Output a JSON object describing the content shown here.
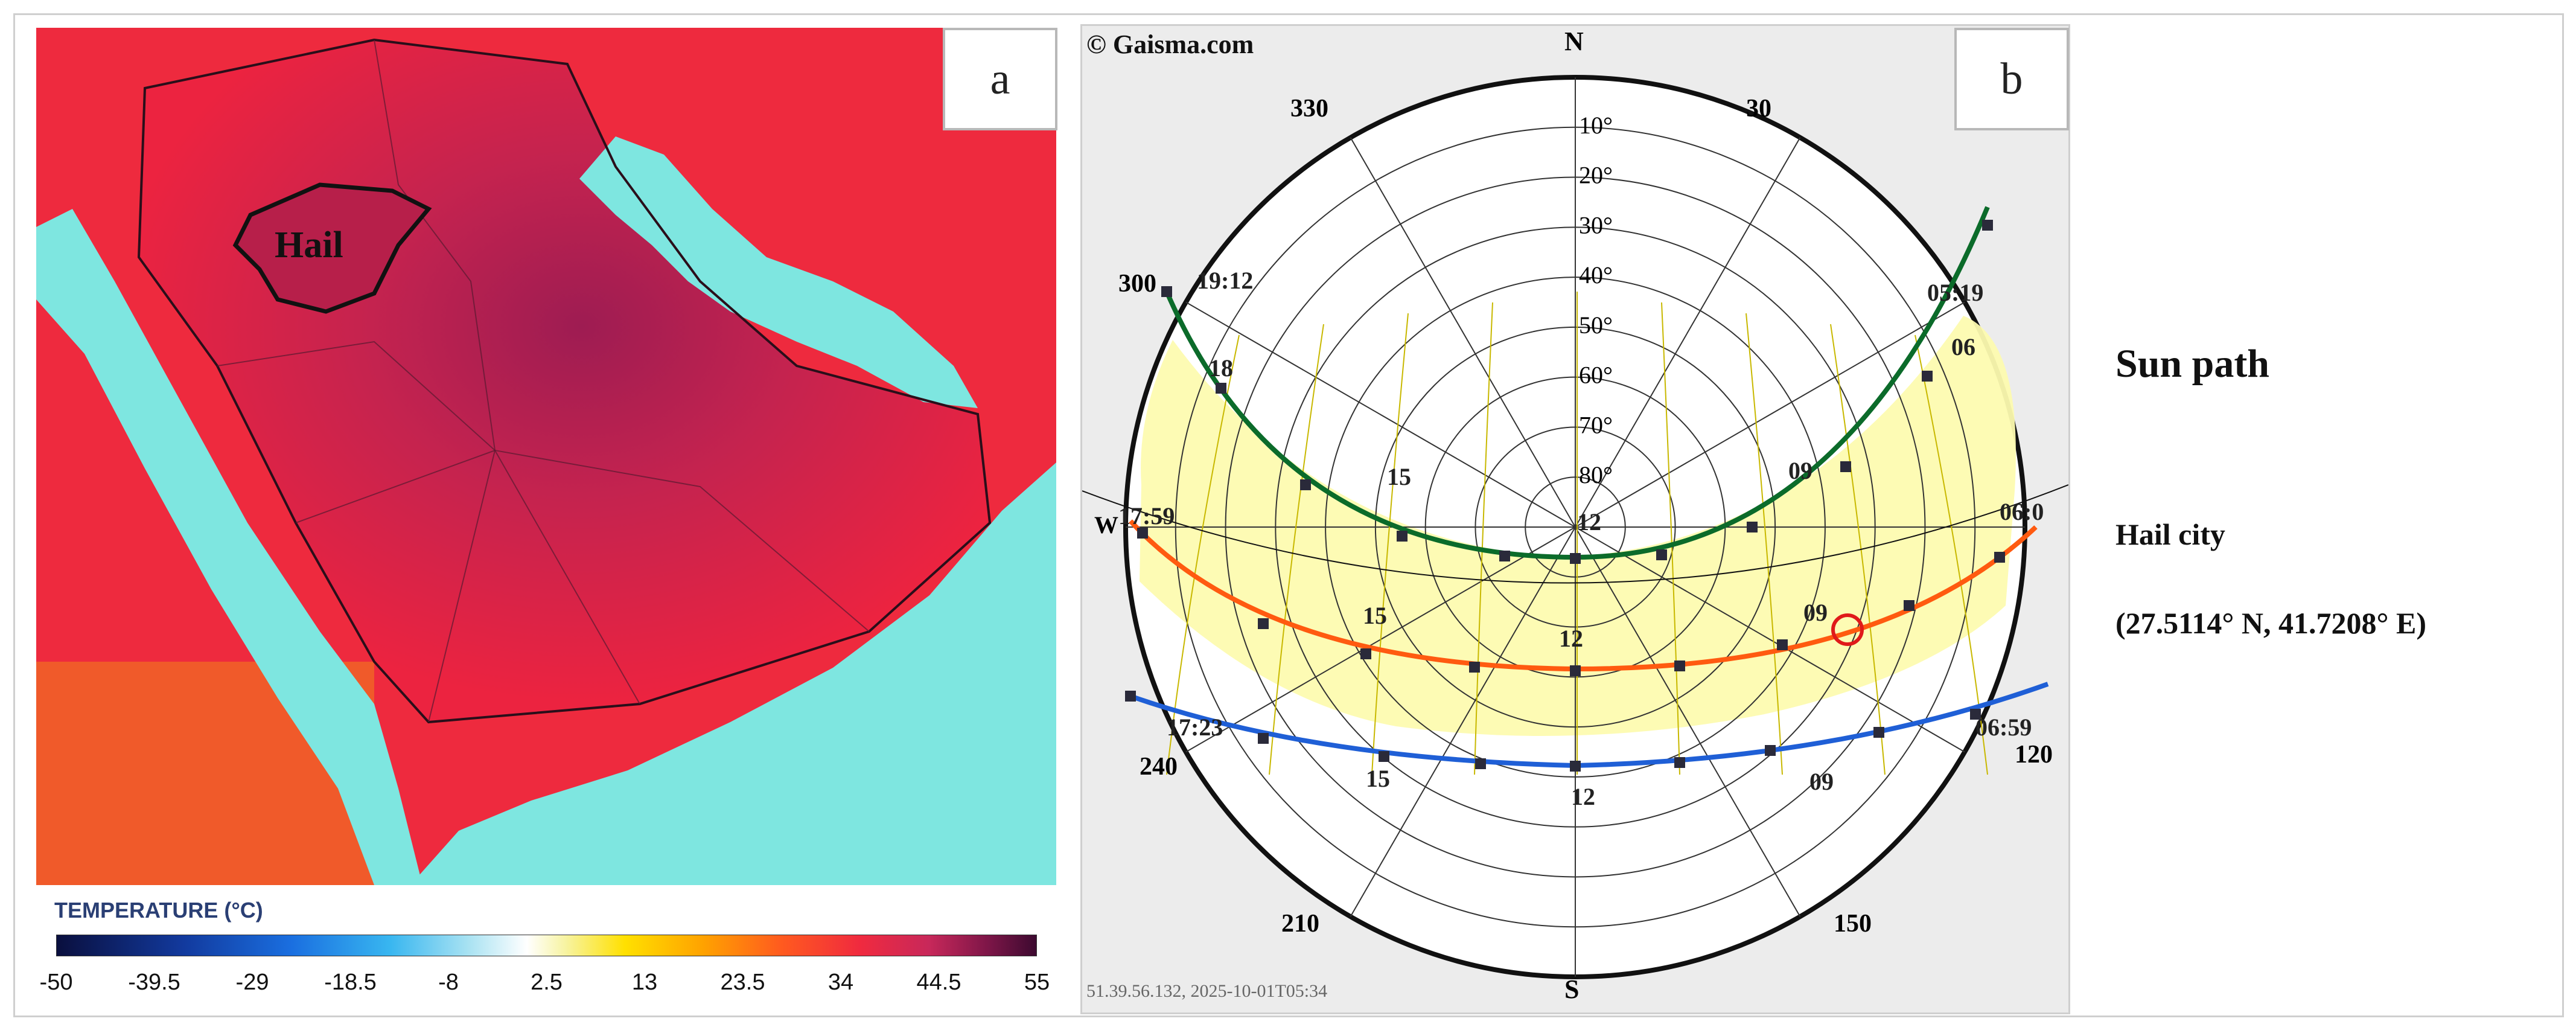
{
  "panel_a": {
    "label": "a",
    "region_label": "Hail",
    "legend": {
      "title": "TEMPERATURE (°C)",
      "ticks": [
        "-50",
        "-39.5",
        "-29",
        "-18.5",
        "-8",
        "2.5",
        "13",
        "23.5",
        "34",
        "44.5",
        "55"
      ]
    },
    "colors": {
      "sea": "#7ae8e0",
      "land_hot": "#e8203f",
      "land_hottest": "#b01e4f"
    }
  },
  "panel_b": {
    "label": "b",
    "credit": "© Gaisma.com",
    "footer": "51.39.56.132, 2025-10-01T05:34",
    "cardinals": {
      "n": "N",
      "s": "S",
      "w": "W"
    },
    "azimuth_labels": [
      "330",
      "30",
      "300",
      "240",
      "210",
      "150",
      "120"
    ],
    "altitude_labels": [
      "10°",
      "20°",
      "30°",
      "40°",
      "50°",
      "60°",
      "70°",
      "80°"
    ],
    "summer_path": {
      "sunrise": "05:19",
      "sunset": "19:12",
      "hours": [
        "18",
        "15",
        "12",
        "09",
        "06"
      ],
      "color": "#0b6b2a"
    },
    "equinox_path": {
      "sunrise": "06:0",
      "sunset": "17:59",
      "hours": [
        "15",
        "12",
        "09"
      ],
      "color": "#ff5a10"
    },
    "winter_path": {
      "sunrise": "06:59",
      "sunset": "17:23",
      "hours": [
        "15",
        "12",
        "09"
      ],
      "color": "#1f5fd6"
    },
    "colors": {
      "daylight_fill": "#fdfbb0"
    }
  },
  "info": {
    "title": "Sun path",
    "city": "Hail city",
    "coordinates": "(27.5114° N, 41.7208° E)"
  }
}
